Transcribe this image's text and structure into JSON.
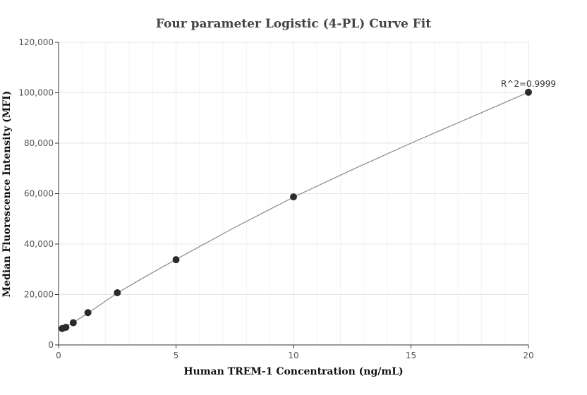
{
  "chart_data": {
    "type": "scatter",
    "title": "Four parameter Logistic (4-PL) Curve Fit",
    "xlabel": "Human TREM-1 Concentration (ng/mL)",
    "ylabel": "Median Fluorescence Intensity (MFI)",
    "xlim": [
      0,
      20
    ],
    "ylim": [
      0,
      120000
    ],
    "x_ticks": [
      0,
      5,
      10,
      15,
      20
    ],
    "x_tick_labels": [
      "0",
      "5",
      "10",
      "15",
      "20"
    ],
    "y_ticks": [
      0,
      20000,
      40000,
      60000,
      80000,
      100000,
      120000
    ],
    "y_tick_labels": [
      "0",
      "20,000",
      "40,000",
      "60,000",
      "80,000",
      "100,000",
      "120,000"
    ],
    "grid": true,
    "series": [
      {
        "points": [
          {
            "x": 0.156,
            "y": 6500
          },
          {
            "x": 0.3125,
            "y": 7000
          },
          {
            "x": 0.625,
            "y": 8800
          },
          {
            "x": 1.25,
            "y": 12800
          },
          {
            "x": 2.5,
            "y": 20700
          },
          {
            "x": 5,
            "y": 33800
          },
          {
            "x": 10,
            "y": 58700
          },
          {
            "x": 20,
            "y": 100200
          }
        ],
        "color": "#2b2b2b"
      }
    ],
    "fit": {
      "type": "4PL",
      "color": "#888888",
      "curve": [
        {
          "x": 0,
          "y": 5800
        },
        {
          "x": 0.156,
          "y": 6500
        },
        {
          "x": 0.3125,
          "y": 7200
        },
        {
          "x": 0.625,
          "y": 8900
        },
        {
          "x": 1.25,
          "y": 12600
        },
        {
          "x": 2.5,
          "y": 20600
        },
        {
          "x": 3.75,
          "y": 27400
        },
        {
          "x": 5,
          "y": 33900
        },
        {
          "x": 7.5,
          "y": 46600
        },
        {
          "x": 10,
          "y": 58600
        },
        {
          "x": 12.5,
          "y": 69500
        },
        {
          "x": 15,
          "y": 80000
        },
        {
          "x": 17.5,
          "y": 90100
        },
        {
          "x": 20,
          "y": 100200
        }
      ]
    },
    "annotation": {
      "text": "R^2=0.9999",
      "x": 20,
      "y": 100200
    }
  }
}
